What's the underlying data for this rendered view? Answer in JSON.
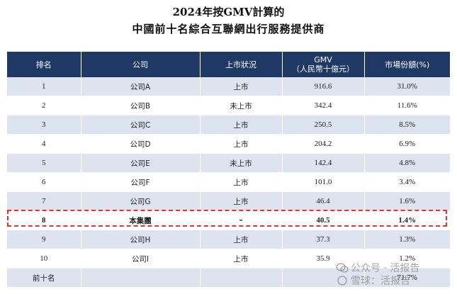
{
  "title": {
    "line1": "2024年按GMV計算的",
    "line2": "中國前十名綜合互聯網出行服務提供商"
  },
  "table": {
    "headers": {
      "rank": "排名",
      "company": "公司",
      "listing": "上市狀況",
      "gmv_line1": "GMV",
      "gmv_line2": "（人民幣十億元）",
      "share": "市場份額(%)"
    },
    "rows": [
      {
        "rank": "1",
        "company": "公司A",
        "listing": "上市",
        "gmv": "916.6",
        "share": "31.0%"
      },
      {
        "rank": "2",
        "company": "公司B",
        "listing": "未上市",
        "gmv": "342.4",
        "share": "11.6%"
      },
      {
        "rank": "3",
        "company": "公司C",
        "listing": "上市",
        "gmv": "250.5",
        "share": "8.5%"
      },
      {
        "rank": "4",
        "company": "公司D",
        "listing": "上市",
        "gmv": "204.2",
        "share": "6.9%"
      },
      {
        "rank": "5",
        "company": "公司E",
        "listing": "未上市",
        "gmv": "142.4",
        "share": "4.8%"
      },
      {
        "rank": "6",
        "company": "公司F",
        "listing": "上市",
        "gmv": "101.0",
        "share": "3.4%"
      },
      {
        "rank": "7",
        "company": "公司G",
        "listing": "上市",
        "gmv": "46.4",
        "share": "1.6%"
      },
      {
        "rank": "8",
        "company": "本集團",
        "listing": "–",
        "gmv": "40.5",
        "share": "1.4%"
      },
      {
        "rank": "9",
        "company": "公司H",
        "listing": "上市",
        "gmv": "37.3",
        "share": "1.3%"
      },
      {
        "rank": "10",
        "company": "公司I",
        "listing": "上市",
        "gmv": "35.9",
        "share": "1.2%"
      }
    ],
    "total": {
      "rank": "前十名",
      "share": "71.7%"
    }
  },
  "watermark": {
    "text1": "公众号 · 活报告",
    "text2": "雪球：活报告"
  }
}
